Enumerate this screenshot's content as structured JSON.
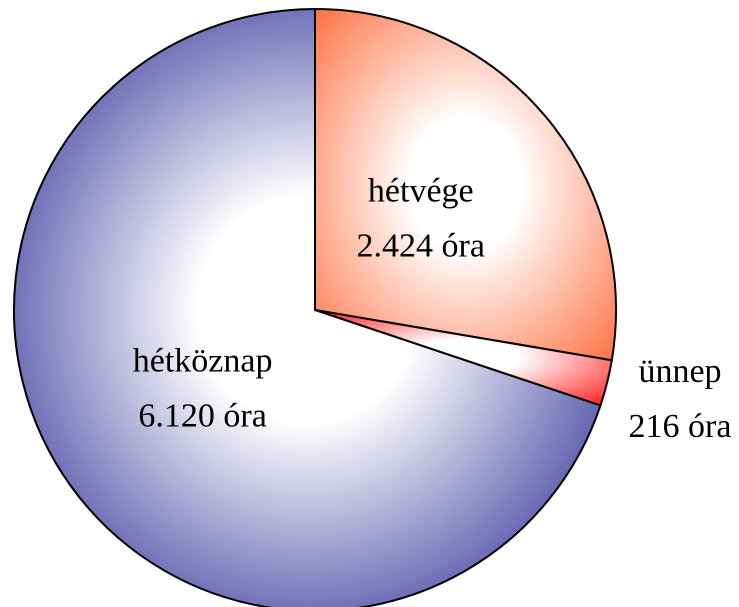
{
  "chart_data": {
    "type": "pie",
    "labels": [
      "hétvége",
      "ünnep",
      "hétköznap"
    ],
    "values": [
      2424,
      216,
      6120
    ],
    "value_labels": [
      "2.424 óra",
      "216 óra",
      "6.120 óra"
    ],
    "colors": [
      "#ff6633",
      "#ff0000",
      "#000080"
    ]
  }
}
